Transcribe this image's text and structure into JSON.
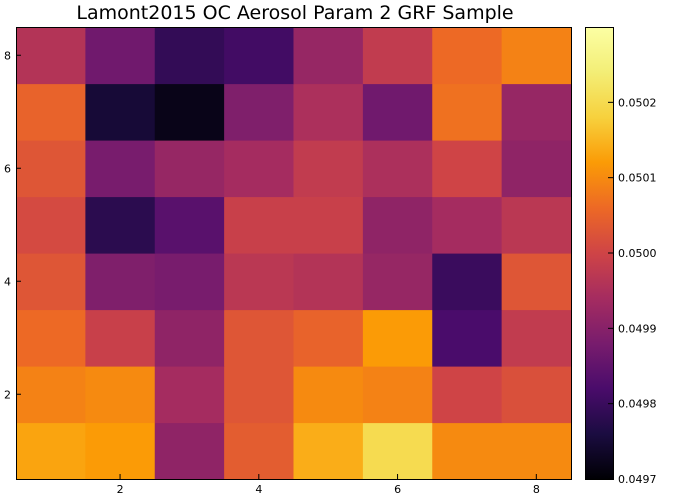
{
  "chart_data": {
    "type": "heatmap",
    "title": "Lamont2015 OC Aerosol Param 2 GRF Sample",
    "xlabel": "",
    "ylabel": "",
    "colormap": "inferno",
    "x_categories": [
      1,
      2,
      3,
      4,
      5,
      6,
      7,
      8
    ],
    "y_categories": [
      1,
      2,
      3,
      4,
      5,
      6,
      7,
      8
    ],
    "xlim": [
      0.5,
      8.5
    ],
    "ylim": [
      0.5,
      8.5
    ],
    "x_ticks": [
      "2",
      "4",
      "6",
      "8"
    ],
    "y_ticks": [
      "2",
      "4",
      "6",
      "8"
    ],
    "grid": false,
    "legend": "colorbar-right",
    "colorbar": {
      "min": 0.0497,
      "max": 0.0503,
      "ticks": [
        "0.0497",
        "0.0498",
        "0.0499",
        "0.0500",
        "0.0501",
        "0.0502"
      ]
    },
    "values": [
      [
        0.05013,
        0.05012,
        0.04991,
        0.05004,
        0.05014,
        0.0502,
        0.0501,
        0.0501
      ],
      [
        0.05009,
        0.0501,
        0.04994,
        0.05003,
        0.0501,
        0.05009,
        0.05,
        0.05002
      ],
      [
        0.05006,
        0.04999,
        0.04991,
        0.05003,
        0.05005,
        0.05012,
        0.04982,
        0.04998
      ],
      [
        0.05003,
        0.04989,
        0.04988,
        0.04997,
        0.04996,
        0.04992,
        0.0498,
        0.05003
      ],
      [
        0.05001,
        0.04978,
        0.04984,
        0.04999,
        0.04999,
        0.04991,
        0.04994,
        0.04997
      ],
      [
        0.05003,
        0.04988,
        0.04992,
        0.04994,
        0.04998,
        0.04995,
        0.05,
        0.04991
      ],
      [
        0.05005,
        0.04975,
        0.04972,
        0.04989,
        0.04995,
        0.04987,
        0.05007,
        0.04992
      ],
      [
        0.04996,
        0.04987,
        0.04979,
        0.04981,
        0.04992,
        0.04998,
        0.05006,
        0.05009
      ]
    ]
  }
}
